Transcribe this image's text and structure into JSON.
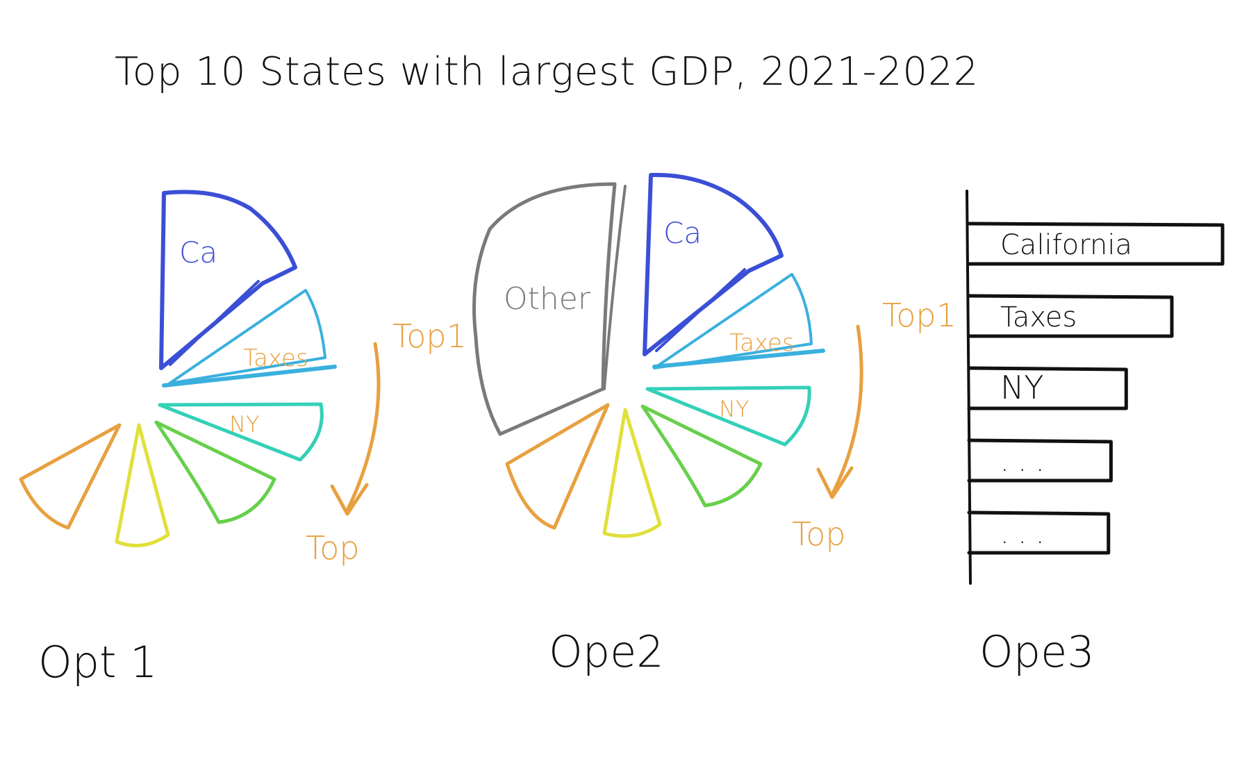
{
  "title": "Top 10 States with largest GDP, 2021-2022",
  "colors": {
    "ink": "#111111",
    "blue": "#3b4fd6",
    "blue2": "#4a7be0",
    "cyan": "#3ab0de",
    "teal": "#34d0b8",
    "green": "#66d04a",
    "yellow": "#e0e03a",
    "orange": "#e8a040",
    "gray": "#7a7a7a"
  },
  "options": [
    {
      "label": "Opt 1",
      "slices": [
        {
          "label": "Ca",
          "color": "#3b4fd6"
        },
        {
          "label": "Taxes",
          "color": "#3ab0de"
        },
        {
          "label": "NY",
          "color": "#34d0b8"
        },
        {
          "label": "",
          "color": "#66d04a"
        },
        {
          "label": "",
          "color": "#e0e03a"
        },
        {
          "label": "",
          "color": "#e8a040"
        }
      ],
      "arrow": {
        "from": "Top1",
        "to": "Top"
      }
    },
    {
      "label": "Ope2",
      "other_label": "Other",
      "slices": [
        {
          "label": "Ca",
          "color": "#3b4fd6"
        },
        {
          "label": "Taxes",
          "color": "#3ab0de"
        },
        {
          "label": "NY",
          "color": "#34d0b8"
        },
        {
          "label": "",
          "color": "#66d04a"
        },
        {
          "label": "",
          "color": "#e0e03a"
        },
        {
          "label": "",
          "color": "#e8a040"
        }
      ],
      "arrow": {
        "from": "Top1",
        "to": "Top"
      }
    },
    {
      "label": "Ope3",
      "bars": [
        {
          "label": "California",
          "value": 1.0
        },
        {
          "label": "Taxes",
          "value": 0.8
        },
        {
          "label": "NY",
          "value": 0.62
        },
        {
          "label": ". . .",
          "value": 0.56
        },
        {
          "label": ". . .",
          "value": 0.55
        }
      ]
    }
  ]
}
